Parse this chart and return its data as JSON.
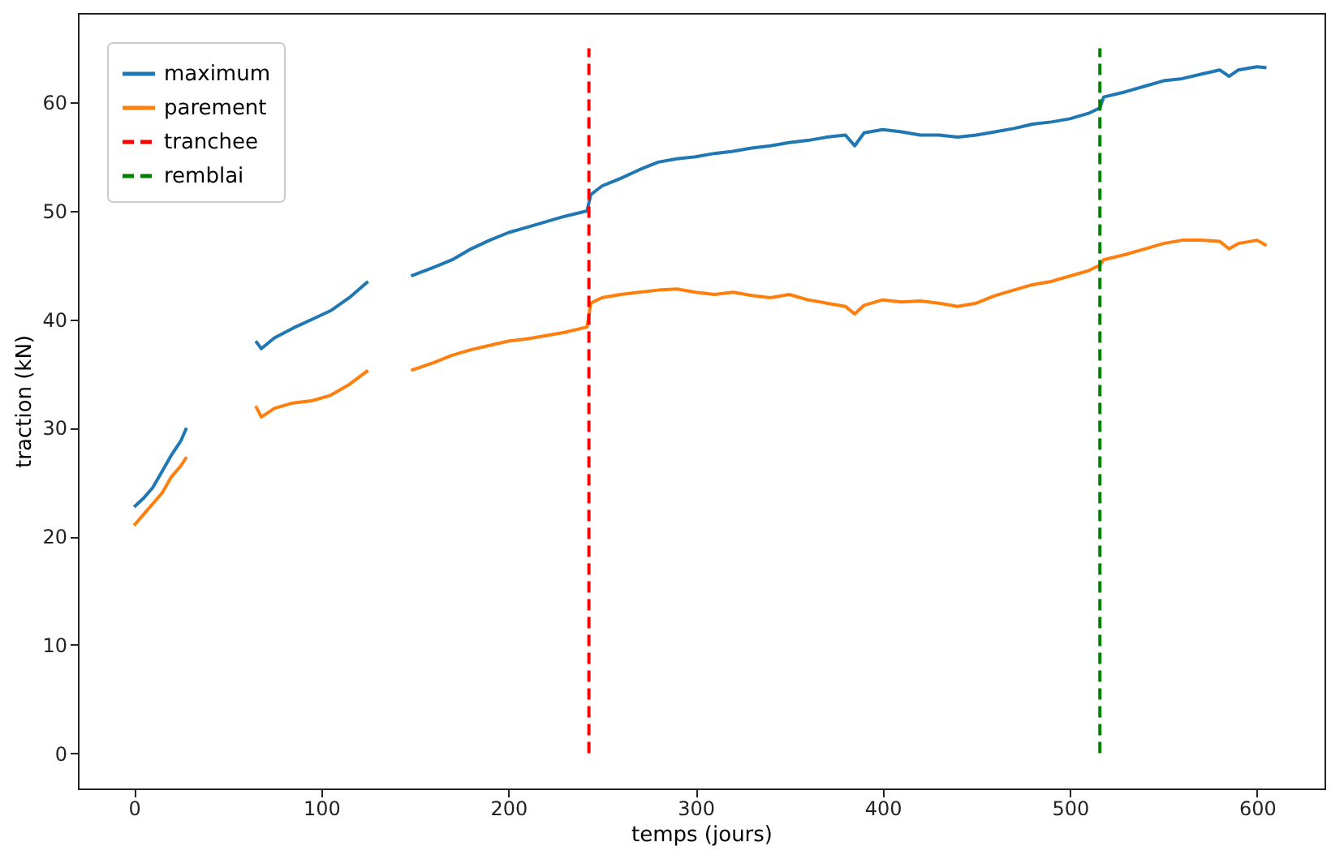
{
  "chart_data": {
    "type": "line",
    "xlabel": "temps (jours)",
    "ylabel": "traction (kN)",
    "xlim": [
      -30,
      636
    ],
    "ylim": [
      -3.25,
      68.25
    ],
    "xticks": [
      0,
      100,
      200,
      300,
      400,
      500,
      600
    ],
    "yticks": [
      0,
      10,
      20,
      30,
      40,
      50,
      60
    ],
    "grid": false,
    "legend": "top left",
    "line_style": "solid",
    "marker": "none",
    "series": [
      {
        "name": "maximum",
        "color": "#1f77b4",
        "x": [
          0,
          5,
          10,
          15,
          20,
          25,
          28,
          45,
          65,
          68,
          75,
          85,
          95,
          105,
          115,
          125,
          137,
          148,
          160,
          170,
          180,
          190,
          200,
          210,
          220,
          230,
          242,
          244,
          250,
          260,
          270,
          280,
          290,
          300,
          310,
          320,
          330,
          340,
          350,
          360,
          370,
          380,
          385,
          390,
          400,
          410,
          420,
          430,
          440,
          450,
          460,
          470,
          480,
          490,
          500,
          510,
          516,
          518,
          530,
          540,
          550,
          560,
          570,
          580,
          585,
          590,
          600,
          605
        ],
        "values": [
          22.7,
          23.5,
          24.5,
          26,
          27.5,
          28.8,
          30,
          null,
          38,
          37.3,
          38.3,
          39.2,
          40,
          40.8,
          42,
          43.5,
          null,
          44,
          44.8,
          45.5,
          46.5,
          47.3,
          48,
          48.5,
          49,
          49.5,
          50,
          51.5,
          52.3,
          53,
          53.8,
          54.5,
          54.8,
          55,
          55.3,
          55.5,
          55.8,
          56,
          56.3,
          56.5,
          56.8,
          57,
          56,
          57.2,
          57.5,
          57.3,
          57,
          57,
          56.8,
          57,
          57.3,
          57.6,
          58,
          58.2,
          58.5,
          59,
          59.5,
          60.5,
          61,
          61.5,
          62,
          62.2,
          62.6,
          63,
          62.4,
          63,
          63.3,
          63.2
        ]
      },
      {
        "name": "parement",
        "color": "#ff7f0e",
        "x": [
          0,
          5,
          10,
          15,
          20,
          25,
          28,
          45,
          65,
          68,
          75,
          85,
          95,
          105,
          115,
          125,
          137,
          148,
          160,
          170,
          180,
          190,
          200,
          210,
          220,
          230,
          242,
          244,
          250,
          260,
          270,
          280,
          290,
          300,
          310,
          320,
          330,
          340,
          350,
          360,
          370,
          380,
          385,
          390,
          400,
          410,
          420,
          430,
          440,
          450,
          460,
          470,
          480,
          490,
          500,
          510,
          516,
          518,
          530,
          540,
          550,
          560,
          570,
          580,
          585,
          590,
          600,
          605
        ],
        "values": [
          21,
          22,
          23,
          24,
          25.5,
          26.5,
          27.3,
          null,
          32,
          31,
          31.8,
          32.3,
          32.5,
          33,
          34,
          35.3,
          null,
          35.3,
          36,
          36.7,
          37.2,
          37.6,
          38,
          38.2,
          38.5,
          38.8,
          39.3,
          41.5,
          42,
          42.3,
          42.5,
          42.7,
          42.8,
          42.5,
          42.3,
          42.5,
          42.2,
          42,
          42.3,
          41.8,
          41.5,
          41.2,
          40.5,
          41.3,
          41.8,
          41.6,
          41.7,
          41.5,
          41.2,
          41.5,
          42.2,
          42.7,
          43.2,
          43.5,
          44,
          44.5,
          45,
          45.5,
          46,
          46.5,
          47,
          47.3,
          47.3,
          47.2,
          46.5,
          47,
          47.3,
          46.8
        ]
      },
      {
        "name": "tranchee",
        "color": "#ff0000",
        "line_style": "dashed",
        "x": [
          243,
          243
        ],
        "values": [
          0,
          65
        ]
      },
      {
        "name": "remblai",
        "color": "#008000",
        "line_style": "dashed",
        "x": [
          516,
          516
        ],
        "values": [
          0,
          65
        ]
      }
    ]
  }
}
